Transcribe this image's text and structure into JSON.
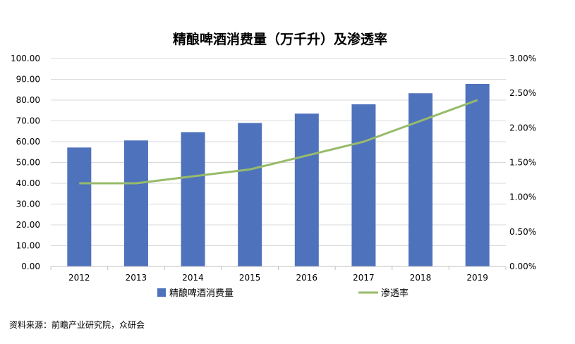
{
  "chart_data": {
    "type": "bar",
    "title": "精酿啤酒消费量（万千升）及渗透率",
    "categories": [
      "2012",
      "2013",
      "2014",
      "2015",
      "2016",
      "2017",
      "2018",
      "2019"
    ],
    "series": [
      {
        "name": "精酿啤酒消费量",
        "type": "bar",
        "axis": "left",
        "color": "#4F72BD",
        "values": [
          57.2,
          60.6,
          64.6,
          69.0,
          73.5,
          78.0,
          83.3,
          87.8
        ]
      },
      {
        "name": "渗透率",
        "type": "line",
        "axis": "right",
        "color": "#97BB6B",
        "values": [
          0.012,
          0.012,
          0.013,
          0.014,
          0.016,
          0.018,
          0.021,
          0.024
        ]
      }
    ],
    "y_left": {
      "lim": [
        0,
        100
      ],
      "ticks": [
        "0.00",
        "10.00",
        "20.00",
        "30.00",
        "40.00",
        "50.00",
        "60.00",
        "70.00",
        "80.00",
        "90.00",
        "100.00"
      ]
    },
    "y_right": {
      "lim": [
        0,
        0.03
      ],
      "ticks": [
        "0.00%",
        "0.50%",
        "1.00%",
        "1.50%",
        "2.00%",
        "2.50%",
        "3.00%"
      ]
    },
    "grid": true,
    "legend": "bottom"
  },
  "source_text": "资料来源：前瞻产业研究院，众研会"
}
